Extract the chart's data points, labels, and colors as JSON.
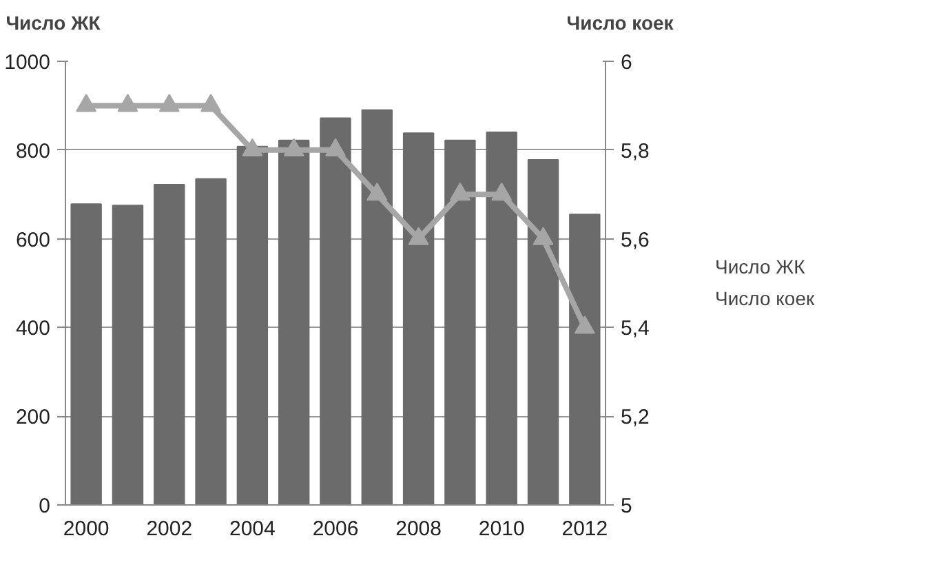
{
  "chart_data": {
    "type": "bar",
    "ylabel": "Число ЖК",
    "y2label": "Число коек",
    "categories": [
      "2000",
      null,
      "2002",
      null,
      "2004",
      null,
      "2006",
      null,
      "2008",
      null,
      "2010",
      null,
      "2012"
    ],
    "series": [
      {
        "name": "Число ЖК",
        "color": "#6b6b6b",
        "values": [
          678,
          675,
          722,
          735,
          808,
          822,
          872,
          890,
          838,
          822,
          840,
          778,
          655
        ]
      },
      {
        "name": "Число коек",
        "type": "line",
        "axis": "y2",
        "color": "#a6a6a6",
        "marker": "triangle",
        "values": [
          5.9,
          5.9,
          5.9,
          5.9,
          5.8,
          5.8,
          5.8,
          5.7,
          5.6,
          5.7,
          5.7,
          5.6,
          5.4
        ]
      }
    ],
    "ylim": [
      0,
      1000
    ],
    "yticks": [
      0,
      200,
      400,
      600,
      800,
      1000
    ],
    "y2lim": [
      5,
      6
    ],
    "y2ticks": [
      5,
      {
        "value": 5.2,
        "label": "5,2"
      },
      {
        "value": 5.4,
        "label": "5,4"
      },
      {
        "value": 5.6,
        "label": "5,6"
      },
      {
        "value": 5.8,
        "label": "5,8"
      },
      6
    ],
    "grid": "y",
    "legend": "right"
  }
}
